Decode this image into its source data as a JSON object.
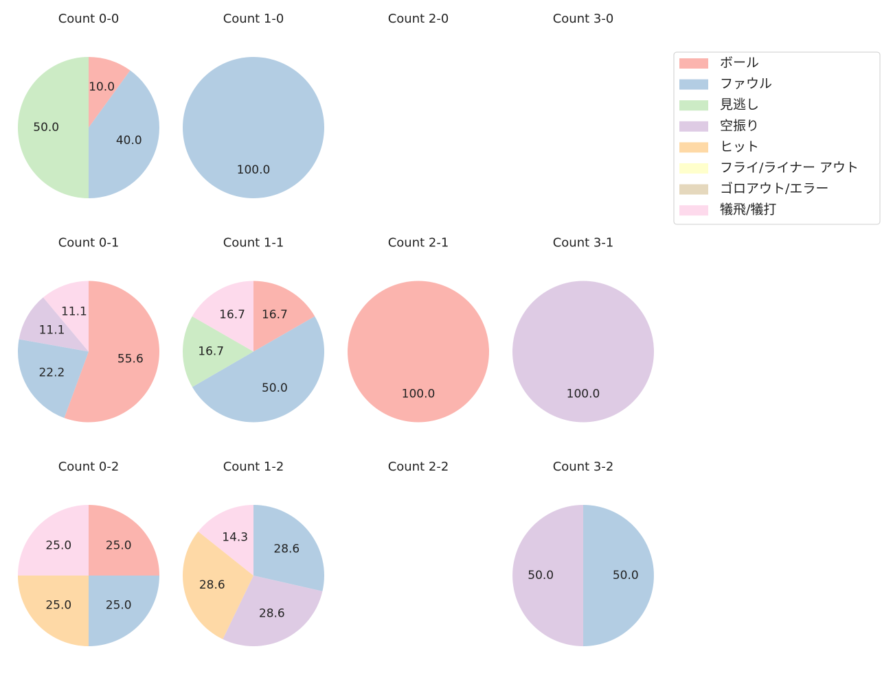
{
  "chart_data": [
    {
      "type": "pie",
      "title": "Count 0-0",
      "categories": [
        "ボール",
        "ファウル",
        "見逃し"
      ],
      "values": [
        10,
        40,
        50
      ],
      "value_labels": [
        "10.0",
        "40.0",
        "50.0"
      ],
      "colors": [
        "#fbb4ae",
        "#b3cde3",
        "#ccebc5"
      ]
    },
    {
      "type": "pie",
      "title": "Count 1-0",
      "categories": [
        "ファウル"
      ],
      "values": [
        100
      ],
      "value_labels": [
        "100.0"
      ],
      "colors": [
        "#b3cde3"
      ]
    },
    {
      "type": "pie",
      "title": "Count 2-0"
    },
    {
      "type": "pie",
      "title": "Count 3-0"
    },
    {
      "type": "pie",
      "title": "Count 0-1",
      "categories": [
        "ボール",
        "ファウル",
        "空振り",
        "犠飛/犠打"
      ],
      "values": [
        55.6,
        22.2,
        11.1,
        11.1
      ],
      "value_labels": [
        "55.6",
        "22.2",
        "11.1",
        "11.1"
      ],
      "colors": [
        "#fbb4ae",
        "#b3cde3",
        "#decbe4",
        "#fddaec"
      ]
    },
    {
      "type": "pie",
      "title": "Count 1-1",
      "categories": [
        "ボール",
        "ファウル",
        "見逃し",
        "犠飛/犠打"
      ],
      "values": [
        16.7,
        50,
        16.7,
        16.7
      ],
      "value_labels": [
        "16.7",
        "50.0",
        "16.7",
        "16.7"
      ],
      "colors": [
        "#fbb4ae",
        "#b3cde3",
        "#ccebc5",
        "#fddaec"
      ]
    },
    {
      "type": "pie",
      "title": "Count 2-1",
      "categories": [
        "ボール"
      ],
      "values": [
        100
      ],
      "value_labels": [
        "100.0"
      ],
      "colors": [
        "#fbb4ae"
      ]
    },
    {
      "type": "pie",
      "title": "Count 3-1",
      "categories": [
        "空振り"
      ],
      "values": [
        100
      ],
      "value_labels": [
        "100.0"
      ],
      "colors": [
        "#decbe4"
      ]
    },
    {
      "type": "pie",
      "title": "Count 0-2",
      "categories": [
        "ボール",
        "ファウル",
        "ヒット",
        "犠飛/犠打"
      ],
      "values": [
        25,
        25,
        25,
        25
      ],
      "value_labels": [
        "25.0",
        "25.0",
        "25.0",
        "25.0"
      ],
      "colors": [
        "#fbb4ae",
        "#b3cde3",
        "#fed9a6",
        "#fddaec"
      ]
    },
    {
      "type": "pie",
      "title": "Count 1-2",
      "categories": [
        "ファウル",
        "空振り",
        "ヒット",
        "犠飛/犠打"
      ],
      "values": [
        28.6,
        28.6,
        28.6,
        14.3
      ],
      "value_labels": [
        "28.6",
        "28.6",
        "28.6",
        "14.3"
      ],
      "colors": [
        "#b3cde3",
        "#decbe4",
        "#fed9a6",
        "#fddaec"
      ]
    },
    {
      "type": "pie",
      "title": "Count 2-2"
    },
    {
      "type": "pie",
      "title": "Count 3-2",
      "categories": [
        "ファウル",
        "空振り"
      ],
      "values": [
        50,
        50
      ],
      "value_labels": [
        "50.0",
        "50.0"
      ],
      "colors": [
        "#b3cde3",
        "#decbe4"
      ]
    }
  ],
  "legend": {
    "position": "upper right",
    "items": [
      {
        "name": "ボール",
        "color": "#fbb4ae"
      },
      {
        "name": "ファウル",
        "color": "#b3cde3"
      },
      {
        "name": "見逃し",
        "color": "#ccebc5"
      },
      {
        "name": "空振り",
        "color": "#decbe4"
      },
      {
        "name": "ヒット",
        "color": "#fed9a6"
      },
      {
        "name": "フライ/ライナー アウト",
        "color": "#ffffcc"
      },
      {
        "name": "ゴロアウト/エラー",
        "color": "#e5d8bd"
      },
      {
        "name": "犠飛/犠打",
        "color": "#fddaec"
      }
    ]
  }
}
